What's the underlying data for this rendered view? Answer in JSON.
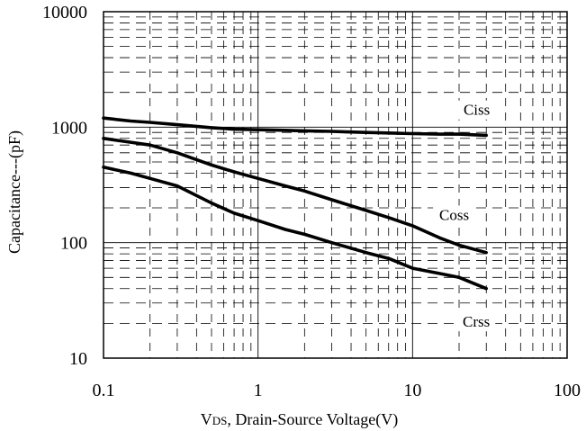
{
  "chart_data": {
    "type": "line",
    "x_scale": "log",
    "y_scale": "log",
    "xlim": [
      0.1,
      100
    ],
    "ylim": [
      10,
      10000
    ],
    "grid": true,
    "x_ticks": [
      {
        "value": 0.1,
        "label": "0.1"
      },
      {
        "value": 1,
        "label": "1"
      },
      {
        "value": 10,
        "label": "10"
      },
      {
        "value": 100,
        "label": "100"
      }
    ],
    "y_ticks": [
      {
        "value": 10,
        "label": "10"
      },
      {
        "value": 100,
        "label": "100"
      },
      {
        "value": 1000,
        "label": "1000"
      },
      {
        "value": 10000,
        "label": "10000"
      }
    ],
    "xlabel": {
      "main": "V",
      "sub": "DS",
      "rest": ", Drain-Source Voltage(V)"
    },
    "ylabel": "Capacitance---(pF)",
    "series": [
      {
        "name": "Ciss",
        "label_at": [
          30,
          1300
        ],
        "x": [
          0.1,
          0.15,
          0.2,
          0.3,
          0.5,
          0.7,
          1,
          1.5,
          2,
          3,
          5,
          7,
          10,
          15,
          20,
          30
        ],
        "y": [
          1200,
          1130,
          1100,
          1050,
          990,
          960,
          950,
          940,
          930,
          920,
          900,
          890,
          880,
          870,
          870,
          850
        ]
      },
      {
        "name": "Coss",
        "label_at": [
          22,
          160
        ],
        "x": [
          0.1,
          0.15,
          0.2,
          0.3,
          0.5,
          0.7,
          1,
          1.5,
          2,
          3,
          5,
          7,
          10,
          15,
          20,
          30
        ],
        "y": [
          800,
          740,
          700,
          600,
          470,
          410,
          360,
          310,
          280,
          235,
          190,
          165,
          140,
          110,
          95,
          82
        ]
      },
      {
        "name": "Crss",
        "label_at": [
          30,
          19
        ],
        "x": [
          0.1,
          0.15,
          0.2,
          0.3,
          0.5,
          0.7,
          1,
          1.5,
          2,
          3,
          5,
          7,
          10,
          15,
          20,
          30
        ],
        "y": [
          450,
          400,
          360,
          310,
          220,
          180,
          155,
          130,
          118,
          100,
          82,
          73,
          60,
          54,
          50,
          40
        ]
      }
    ]
  }
}
